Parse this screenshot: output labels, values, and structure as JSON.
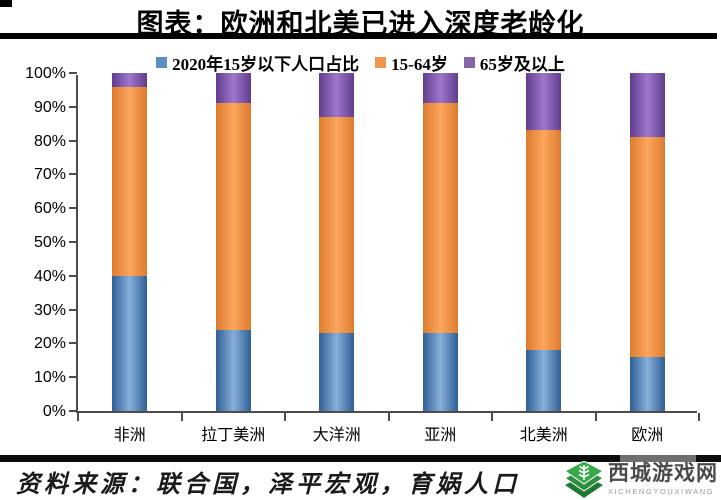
{
  "title": "图表：欧洲和北美已进入深度老龄化",
  "chart_data": {
    "type": "bar",
    "stacked": true,
    "legend_position": "top",
    "grid": false,
    "categories": [
      "非洲",
      "拉丁美洲",
      "大洋洲",
      "亚洲",
      "北美洲",
      "欧洲"
    ],
    "series": [
      {
        "name": "2020年15岁以下人口占比",
        "color": "#5b8fc0",
        "edge": "#2f5f96",
        "mid": "#86afd9",
        "values": [
          40,
          24,
          23,
          23,
          18,
          16
        ]
      },
      {
        "name": "15-64岁",
        "color": "#f0964c",
        "edge": "#dd7b2d",
        "mid": "#fca55e",
        "values": [
          56,
          67,
          64,
          68,
          65,
          65
        ]
      },
      {
        "name": "65岁及以上",
        "color": "#8465a8",
        "edge": "#5f3d8c",
        "mid": "#9f77cd",
        "values": [
          4,
          9,
          13,
          9,
          17,
          19
        ]
      }
    ],
    "ylabel": "",
    "xlabel": "",
    "ylim": [
      0,
      100
    ],
    "y_ticks": [
      "0%",
      "10%",
      "20%",
      "30%",
      "40%",
      "50%",
      "60%",
      "70%",
      "80%",
      "90%",
      "100%"
    ]
  },
  "source": {
    "text": "资料来源：联合国，泽平宏观，育娲人口"
  },
  "watermark": {
    "name": "西城游戏网",
    "latin": "XICHENGYOUXIWANG",
    "logo_colors": {
      "top": "#3aa94d",
      "middle": "#2c8f3f",
      "bottom": "#1e7a33"
    }
  }
}
